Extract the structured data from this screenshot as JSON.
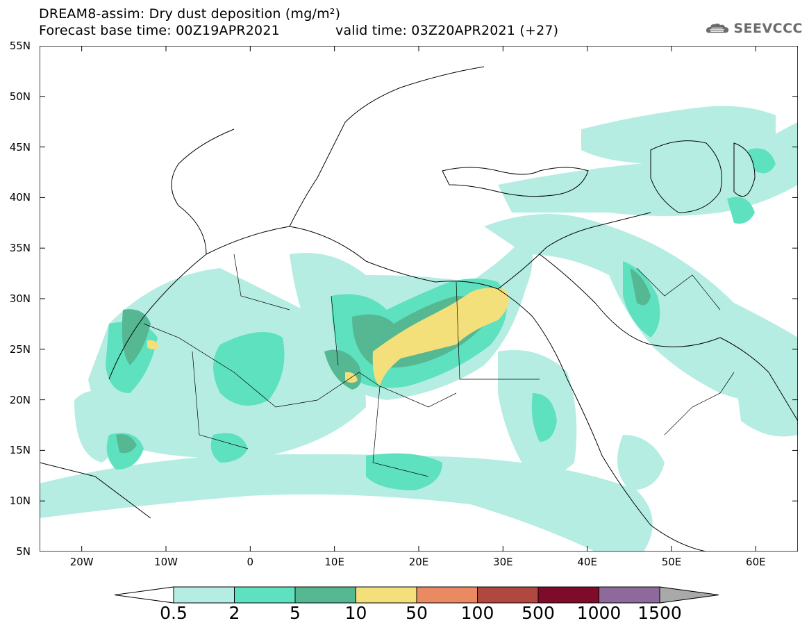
{
  "header": {
    "title_line1": "DREAM8-assim: Dry dust deposition (mg/m²)",
    "title_line2": "Forecast base time: 00Z19APR2021",
    "valid_time": "valid time: 03Z20APR2021 (+27)",
    "logo_text": "SEEVCCC",
    "logo_icon": "cloud-icon"
  },
  "map": {
    "lat_labels": [
      "55N",
      "50N",
      "45N",
      "40N",
      "35N",
      "30N",
      "25N",
      "20N",
      "15N",
      "10N",
      "5N"
    ],
    "lon_labels": [
      "20W",
      "10W",
      "0",
      "10E",
      "20E",
      "30E",
      "40E",
      "50E",
      "60E"
    ],
    "lat_range": [
      5,
      55
    ],
    "lon_range": [
      -25,
      65
    ]
  },
  "legend": {
    "labels": [
      "0.5",
      "2",
      "5",
      "10",
      "50",
      "100",
      "500",
      "1000",
      "1500"
    ],
    "colors": [
      "#b5ede3",
      "#5ee1bf",
      "#55b893",
      "#f3e07a",
      "#e98a63",
      "#b1483f",
      "#7e0b2a",
      "#8d699c"
    ],
    "under_color": "#ffffff",
    "over_color": "#a9a9a9"
  }
}
